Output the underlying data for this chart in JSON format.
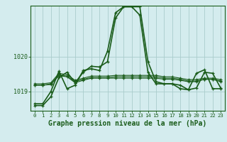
{
  "bg_color": "#d4ecee",
  "grid_color": "#aacccc",
  "line_color": "#1a5c1a",
  "xlabel": "Graphe pression niveau de la mer (hPa)",
  "xlabel_fontsize": 7.0,
  "xtick_labels": [
    "0",
    "1",
    "2",
    "3",
    "4",
    "5",
    "6",
    "7",
    "8",
    "9",
    "10",
    "11",
    "12",
    "13",
    "14",
    "15",
    "16",
    "17",
    "18",
    "19",
    "20",
    "21",
    "22",
    "23"
  ],
  "ytick_vals": [
    1019,
    1020
  ],
  "ytick_labels": [
    "1019",
    "1020"
  ],
  "ylim": [
    1018.45,
    1021.45
  ],
  "xlim": [
    -0.5,
    23.5
  ],
  "series": [
    [
      1018.6,
      1018.6,
      1018.85,
      1019.4,
      1019.55,
      1019.25,
      1019.55,
      1019.72,
      1019.7,
      1019.85,
      1021.1,
      1021.42,
      1021.42,
      1021.42,
      1019.85,
      1019.28,
      1019.22,
      1019.22,
      1019.18,
      1019.05,
      1019.1,
      1019.55,
      1019.52,
      1019.1
    ],
    [
      1019.18,
      1019.18,
      1019.2,
      1019.45,
      1019.42,
      1019.25,
      1019.32,
      1019.38,
      1019.38,
      1019.38,
      1019.38,
      1019.38,
      1019.38,
      1019.38,
      1019.38,
      1019.38,
      1019.35,
      1019.35,
      1019.32,
      1019.28,
      1019.28,
      1019.35,
      1019.35,
      1019.28
    ],
    [
      1019.18,
      1019.18,
      1019.22,
      1019.48,
      1019.44,
      1019.28,
      1019.35,
      1019.4,
      1019.4,
      1019.4,
      1019.42,
      1019.42,
      1019.42,
      1019.42,
      1019.42,
      1019.42,
      1019.38,
      1019.38,
      1019.35,
      1019.3,
      1019.3,
      1019.35,
      1019.35,
      1019.3
    ],
    [
      1019.22,
      1019.22,
      1019.25,
      1019.52,
      1019.48,
      1019.32,
      1019.38,
      1019.44,
      1019.44,
      1019.44,
      1019.46,
      1019.46,
      1019.46,
      1019.46,
      1019.46,
      1019.46,
      1019.42,
      1019.42,
      1019.38,
      1019.34,
      1019.34,
      1019.38,
      1019.38,
      1019.34
    ],
    [
      1018.65,
      1018.65,
      1019.0,
      1019.58,
      1019.08,
      1019.18,
      1019.6,
      1019.65,
      1019.6,
      1020.15,
      1021.25,
      1021.42,
      1021.42,
      1021.18,
      1019.55,
      1019.22,
      1019.22,
      1019.22,
      1019.08,
      1019.05,
      1019.52,
      1019.62,
      1019.08,
      1019.08
    ]
  ]
}
